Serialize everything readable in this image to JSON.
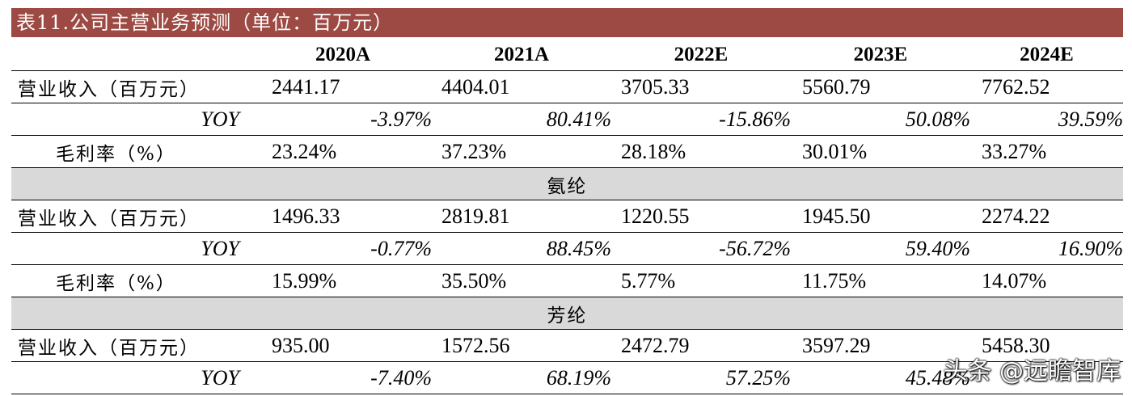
{
  "title": "表11.公司主营业务预测（单位：百万元）",
  "columns": [
    "",
    "2020A",
    "2021A",
    "2022E",
    "2023E",
    "2024E"
  ],
  "total": {
    "revenue_label": "营业收入（百万元）",
    "revenue": [
      "2441.17",
      "4404.01",
      "3705.33",
      "5560.79",
      "7762.52"
    ],
    "yoy_label": "YOY",
    "yoy": [
      "-3.97%",
      "80.41%",
      "-15.86%",
      "50.08%",
      "39.59%"
    ],
    "margin_label": "毛利率（%）",
    "margin": [
      "23.24%",
      "37.23%",
      "28.18%",
      "30.01%",
      "33.27%"
    ]
  },
  "spandex": {
    "section_label": "氨纶",
    "revenue_label": "营业收入（百万元）",
    "revenue": [
      "1496.33",
      "2819.81",
      "1220.55",
      "1945.50",
      "2274.22"
    ],
    "yoy_label": "YOY",
    "yoy": [
      "-0.77%",
      "88.45%",
      "-56.72%",
      "59.40%",
      "16.90%"
    ],
    "margin_label": "毛利率（%）",
    "margin": [
      "15.99%",
      "35.50%",
      "5.77%",
      "11.75%",
      "14.07%"
    ]
  },
  "aramid": {
    "section_label": "芳纶",
    "revenue_label": "营业收入（百万元）",
    "revenue": [
      "935.00",
      "1572.56",
      "2472.79",
      "3597.29",
      "5458.30"
    ],
    "yoy_label": "YOY",
    "yoy": [
      "-7.40%",
      "68.19%",
      "57.25%",
      "45.48%",
      ""
    ]
  },
  "watermark": "头条 @远瞻智库"
}
